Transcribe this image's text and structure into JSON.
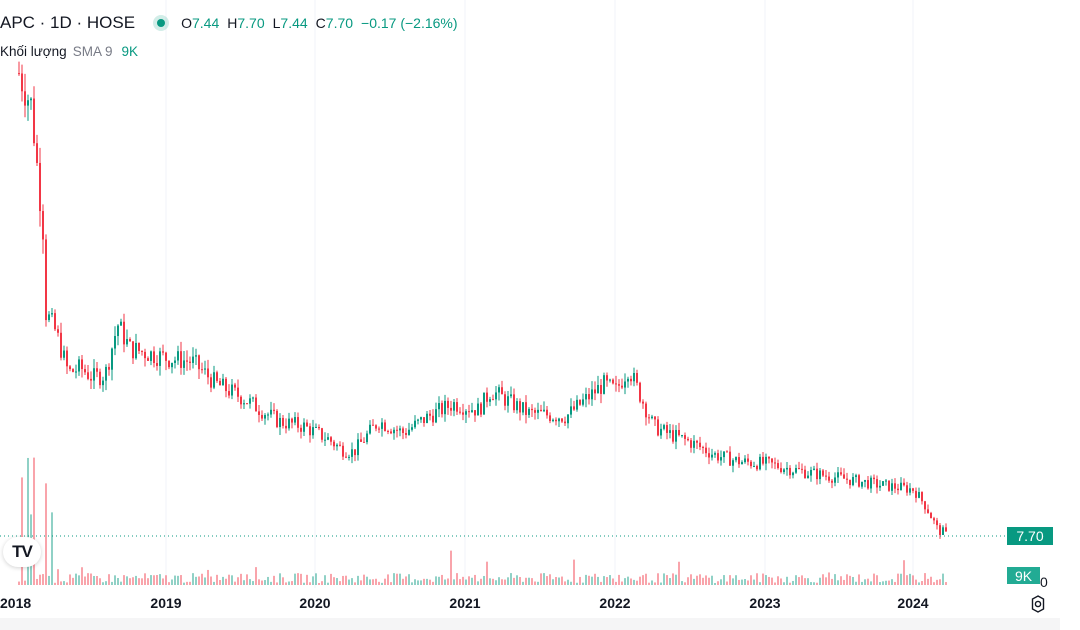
{
  "header": {
    "symbol": "APC · 1D · HOSE",
    "status_color": "#089981",
    "ohlc": {
      "open_label": "O",
      "open": "7.44",
      "high_label": "H",
      "high": "7.70",
      "low_label": "L",
      "low": "7.44",
      "close_label": "C",
      "close": "7.70",
      "change": "−0.17 (−2.16%)"
    }
  },
  "volume_legend": {
    "title": "Khối lượng",
    "sma": "SMA 9",
    "value": "9K"
  },
  "price_tag": "7.70",
  "volume_tag": "9K",
  "logo_text": "TV",
  "x_axis_ticks": [
    "2018",
    "2019",
    "2020",
    "2021",
    "2022",
    "2023",
    "2024"
  ],
  "colors": {
    "up": "#089981",
    "down": "#f23645",
    "grid": "#f0f3fa",
    "price_line": "#089981"
  },
  "chart_data": {
    "type": "line",
    "title": "APC · 1D · HOSE",
    "x": [
      "2018-01",
      "2018-02",
      "2018-03",
      "2018-03",
      "2018-04",
      "2018-05",
      "2018-06",
      "2018-07",
      "2018-08",
      "2018-09",
      "2018-10",
      "2018-11",
      "2019-01",
      "2019-03",
      "2019-05",
      "2019-07",
      "2019-10",
      "2019-12",
      "2020-02",
      "2020-03",
      "2020-04",
      "2020-06",
      "2020-08",
      "2020-10",
      "2020-12",
      "2021-02",
      "2021-03",
      "2021-06",
      "2021-09",
      "2021-12",
      "2022-01",
      "2022-02",
      "2022-03",
      "2022-04",
      "2022-05",
      "2022-07",
      "2022-09",
      "2022-11",
      "2023-01",
      "2023-04",
      "2023-07",
      "2023-10",
      "2024-01",
      "2024-02",
      "2024-03"
    ],
    "y": [
      36.0,
      34.0,
      26.0,
      21.5,
      20.0,
      17.5,
      17.8,
      17.2,
      17.4,
      20.5,
      19.0,
      18.8,
      18.4,
      18.2,
      16.8,
      16.0,
      14.5,
      14.2,
      13.4,
      12.8,
      12.6,
      14.5,
      13.8,
      14.8,
      15.6,
      15.2,
      16.4,
      15.0,
      14.8,
      16.8,
      16.4,
      17.8,
      16.0,
      14.2,
      13.8,
      13.2,
      12.4,
      12.0,
      11.9,
      11.4,
      11.0,
      10.6,
      10.3,
      9.2,
      7.7
    ],
    "last_close": 7.7,
    "volume_sma9": "9K",
    "grid": true
  }
}
